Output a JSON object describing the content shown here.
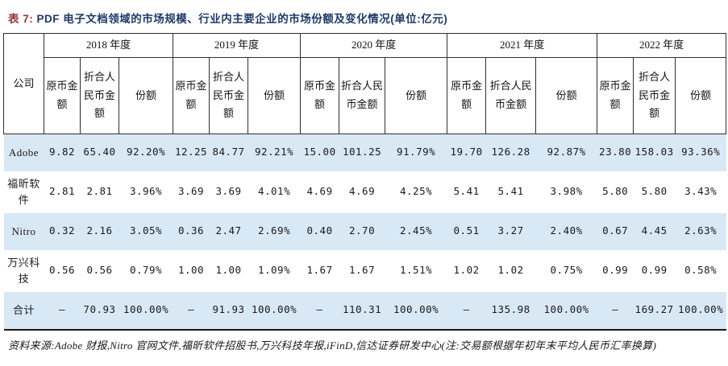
{
  "page": {
    "title_prefix": "表 7:",
    "title": "PDF 电子文档领域的市场规模、行业内主要企业的市场份额及变化情况(单位:亿元)",
    "source_note": "资料来源:Adobe 财报,Nitro 官网文件,福昕软件招股书,万兴科技年报,iFinD,信达证券研发中心(注:交易额根据年初年末平均人民币汇率换算)"
  },
  "colors": {
    "title_prefix": "#943634",
    "title_text": "#1F3A68",
    "row_alternate": "#D9E8F5",
    "table_border": "#2F2F2F"
  },
  "table": {
    "company_header": "公司",
    "year_groups": [
      "2018 年度",
      "2019 年度",
      "2020 年度",
      "2021 年度",
      "2022 年度"
    ],
    "sub_headers": [
      "原币金额",
      "折合人民币金额",
      "份额"
    ],
    "rows": [
      {
        "company": "Adobe",
        "values": [
          "9.82",
          "65.40",
          "92.20%",
          "12.25",
          "84.77",
          "92.21%",
          "15.00",
          "101.25",
          "91.79%",
          "19.70",
          "126.28",
          "92.87%",
          "23.80",
          "158.03",
          "93.36%"
        ]
      },
      {
        "company": "福昕软件",
        "values": [
          "2.81",
          "2.81",
          "3.96%",
          "3.69",
          "3.69",
          "4.01%",
          "4.69",
          "4.69",
          "4.25%",
          "5.41",
          "5.41",
          "3.98%",
          "5.80",
          "5.80",
          "3.43%"
        ]
      },
      {
        "company": "Nitro",
        "values": [
          "0.32",
          "2.16",
          "3.05%",
          "0.36",
          "2.47",
          "2.69%",
          "0.40",
          "2.70",
          "2.45%",
          "0.51",
          "3.27",
          "2.40%",
          "0.67",
          "4.45",
          "2.63%"
        ]
      },
      {
        "company": "万兴科技",
        "values": [
          "0.56",
          "0.56",
          "0.79%",
          "1.00",
          "1.00",
          "1.09%",
          "1.67",
          "1.67",
          "1.51%",
          "1.02",
          "1.02",
          "0.75%",
          "0.99",
          "0.99",
          "0.58%"
        ]
      },
      {
        "company": "合计",
        "values": [
          "–",
          "70.93",
          "100.00%",
          "–",
          "91.93",
          "100.00%",
          "–",
          "110.31",
          "100.00%",
          "–",
          "135.98",
          "100.00%",
          "–",
          "169.27",
          "100.00%"
        ]
      }
    ]
  }
}
